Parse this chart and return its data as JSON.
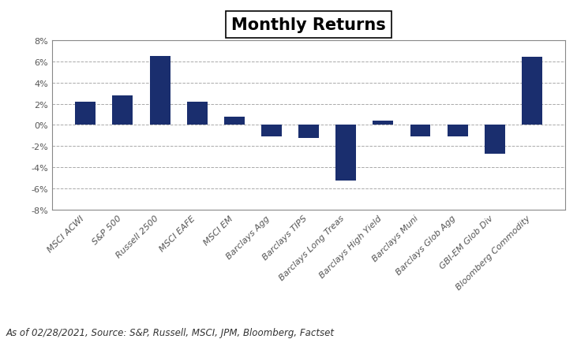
{
  "title": "Monthly Returns",
  "categories": [
    "MSCI ACWI",
    "S&P 500",
    "Russell 2500",
    "MSCI EAFE",
    "MSCI EM",
    "Barclays Agg",
    "Barclays TIPS",
    "Barclays Long Treas",
    "Barclays High Yield",
    "Barclays Muni",
    "Barclays Glob Agg",
    "GBI-EM Glob Div",
    "Bloomberg Commodity"
  ],
  "values": [
    2.2,
    2.8,
    6.5,
    2.2,
    0.8,
    -1.1,
    -1.2,
    -5.2,
    0.4,
    -1.1,
    -1.1,
    -2.7,
    6.4
  ],
  "bar_color": "#1a2e6e",
  "ylim": [
    -8,
    8
  ],
  "yticks": [
    -8,
    -6,
    -4,
    -2,
    0,
    2,
    4,
    6,
    8
  ],
  "footnote": "As of 02/28/2021, Source: S&P, Russell, MSCI, JPM, Bloomberg, Factset",
  "background_color": "#ffffff",
  "plot_bg_color": "#ffffff",
  "grid_color": "#aaaaaa",
  "title_fontsize": 15,
  "tick_fontsize": 8,
  "footnote_fontsize": 8.5
}
